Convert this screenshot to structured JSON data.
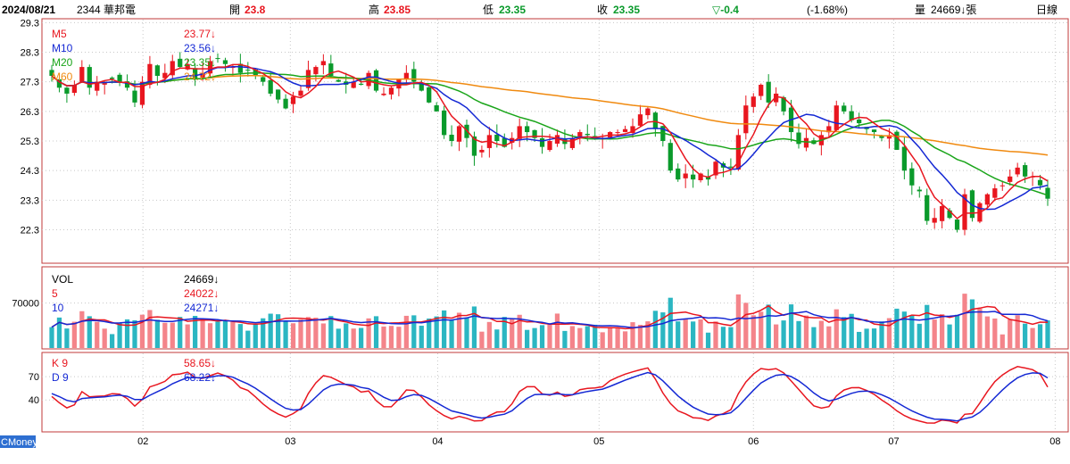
{
  "header": {
    "date": "2024/08/21",
    "stock": "2344 華邦電",
    "open_label": "開",
    "open": "23.8",
    "high_label": "高",
    "high": "23.85",
    "low_label": "低",
    "low": "23.35",
    "close_label": "收",
    "close": "23.35",
    "change": "▽-0.4",
    "change_pct": "(-1.68%)",
    "volume_label": "量",
    "volume": "24669↓張",
    "period": "日線"
  },
  "watermark": "CMoney",
  "colors": {
    "up": "#e8161f",
    "down": "#0a9a2b",
    "ma5": "#e8161f",
    "ma10": "#1428d4",
    "ma20": "#1aa51a",
    "ma60": "#f08a10",
    "vol_up": "#f4848a",
    "vol_down": "#2bb6c2",
    "frame": "#c23a3a",
    "grid": "#c8c8c8"
  },
  "legend_price": [
    {
      "name": "M5",
      "value": "23.77↓",
      "color": "#e8161f"
    },
    {
      "name": "M10",
      "value": "23.56↓",
      "color": "#1428d4"
    },
    {
      "name": "M20",
      "value": "23.35↓",
      "color": "#1aa51a"
    },
    {
      "name": "M60",
      "value": "24.72↓",
      "color": "#f08a10"
    }
  ],
  "legend_volume": [
    {
      "name": "VOL",
      "value": "24669↓",
      "color": "#000000"
    },
    {
      "name": "5",
      "value": "24022↓",
      "color": "#e8161f"
    },
    {
      "name": "10",
      "value": "24271↓",
      "color": "#1428d4"
    }
  ],
  "legend_kd": [
    {
      "name": "K 9",
      "value": "58.65↓",
      "color": "#e8161f"
    },
    {
      "name": "D 9",
      "value": "68.22↓",
      "color": "#1428d4"
    }
  ],
  "chart_data": [
    {
      "type": "candlestick",
      "y_ticks": [
        "29.3",
        "28.3",
        "27.3",
        "26.3",
        "25.3",
        "24.3",
        "23.3",
        "22.3"
      ],
      "ylim": [
        21.2,
        29.4
      ],
      "x_labels": [
        "02",
        "03",
        "04",
        "05",
        "06",
        "07",
        "08"
      ],
      "x_label_dates": [
        "2024-02-01",
        "2024-03-01",
        "2024-04-01",
        "2024-05-02",
        "2024-06-03",
        "2024-07-01",
        "2024-08-01"
      ],
      "close": [
        27.5,
        27.1,
        26.9,
        27.2,
        27.8,
        27.1,
        27.3,
        27.3,
        27.4,
        27.3,
        27.1,
        26.6,
        27.3,
        27.9,
        27.5,
        27.6,
        28.0,
        27.8,
        27.9,
        27.4,
        27.6,
        28.0,
        28.1,
        27.9,
        27.8,
        27.6,
        27.7,
        27.5,
        27.3,
        26.9,
        26.7,
        26.4,
        26.8,
        27.0,
        27.7,
        27.8,
        28.0,
        27.5,
        27.3,
        27.2,
        27.3,
        27.2,
        27.6,
        27.0,
        26.9,
        27.1,
        27.4,
        27.6,
        27.3,
        27.0,
        26.6,
        26.3,
        25.5,
        25.3,
        25.8,
        25.4,
        24.8,
        25.0,
        25.5,
        25.3,
        25.1,
        25.4,
        25.8,
        25.6,
        25.4,
        25.1,
        25.3,
        25.5,
        25.2,
        25.4,
        25.6,
        25.5,
        25.4,
        25.4,
        25.6,
        25.6,
        25.7,
        25.8,
        26.2,
        26.4,
        25.7,
        25.3,
        24.3,
        24.0,
        24.2,
        24.0,
        24.2,
        24.0,
        24.6,
        24.4,
        24.4,
        25.5,
        26.5,
        26.8,
        27.2,
        26.6,
        26.9,
        26.3,
        25.6,
        25.2,
        25.4,
        25.2,
        25.5,
        25.8,
        26.5,
        26.3,
        26.0,
        25.9,
        25.7,
        25.6,
        25.4,
        25.5,
        25.0,
        24.3,
        23.8,
        23.6,
        22.6,
        22.7,
        23.1,
        22.7,
        22.3,
        23.5,
        22.7,
        23.2,
        23.5,
        23.7,
        23.8,
        24.1,
        24.4,
        24.1,
        24.1,
        23.8,
        23.35
      ],
      "note": "Approximate daily closes read from the candlestick chart (Feb–Aug 2024); overlaid lines are 5/10/20/60-day moving averages."
    },
    {
      "type": "bar",
      "title": "VOL",
      "y_ticks": [
        "70000"
      ],
      "ylim": [
        0,
        125000
      ]
    },
    {
      "type": "line",
      "title": "KD",
      "y_ticks": [
        "70",
        "40"
      ],
      "ylim": [
        0,
        100
      ]
    }
  ]
}
